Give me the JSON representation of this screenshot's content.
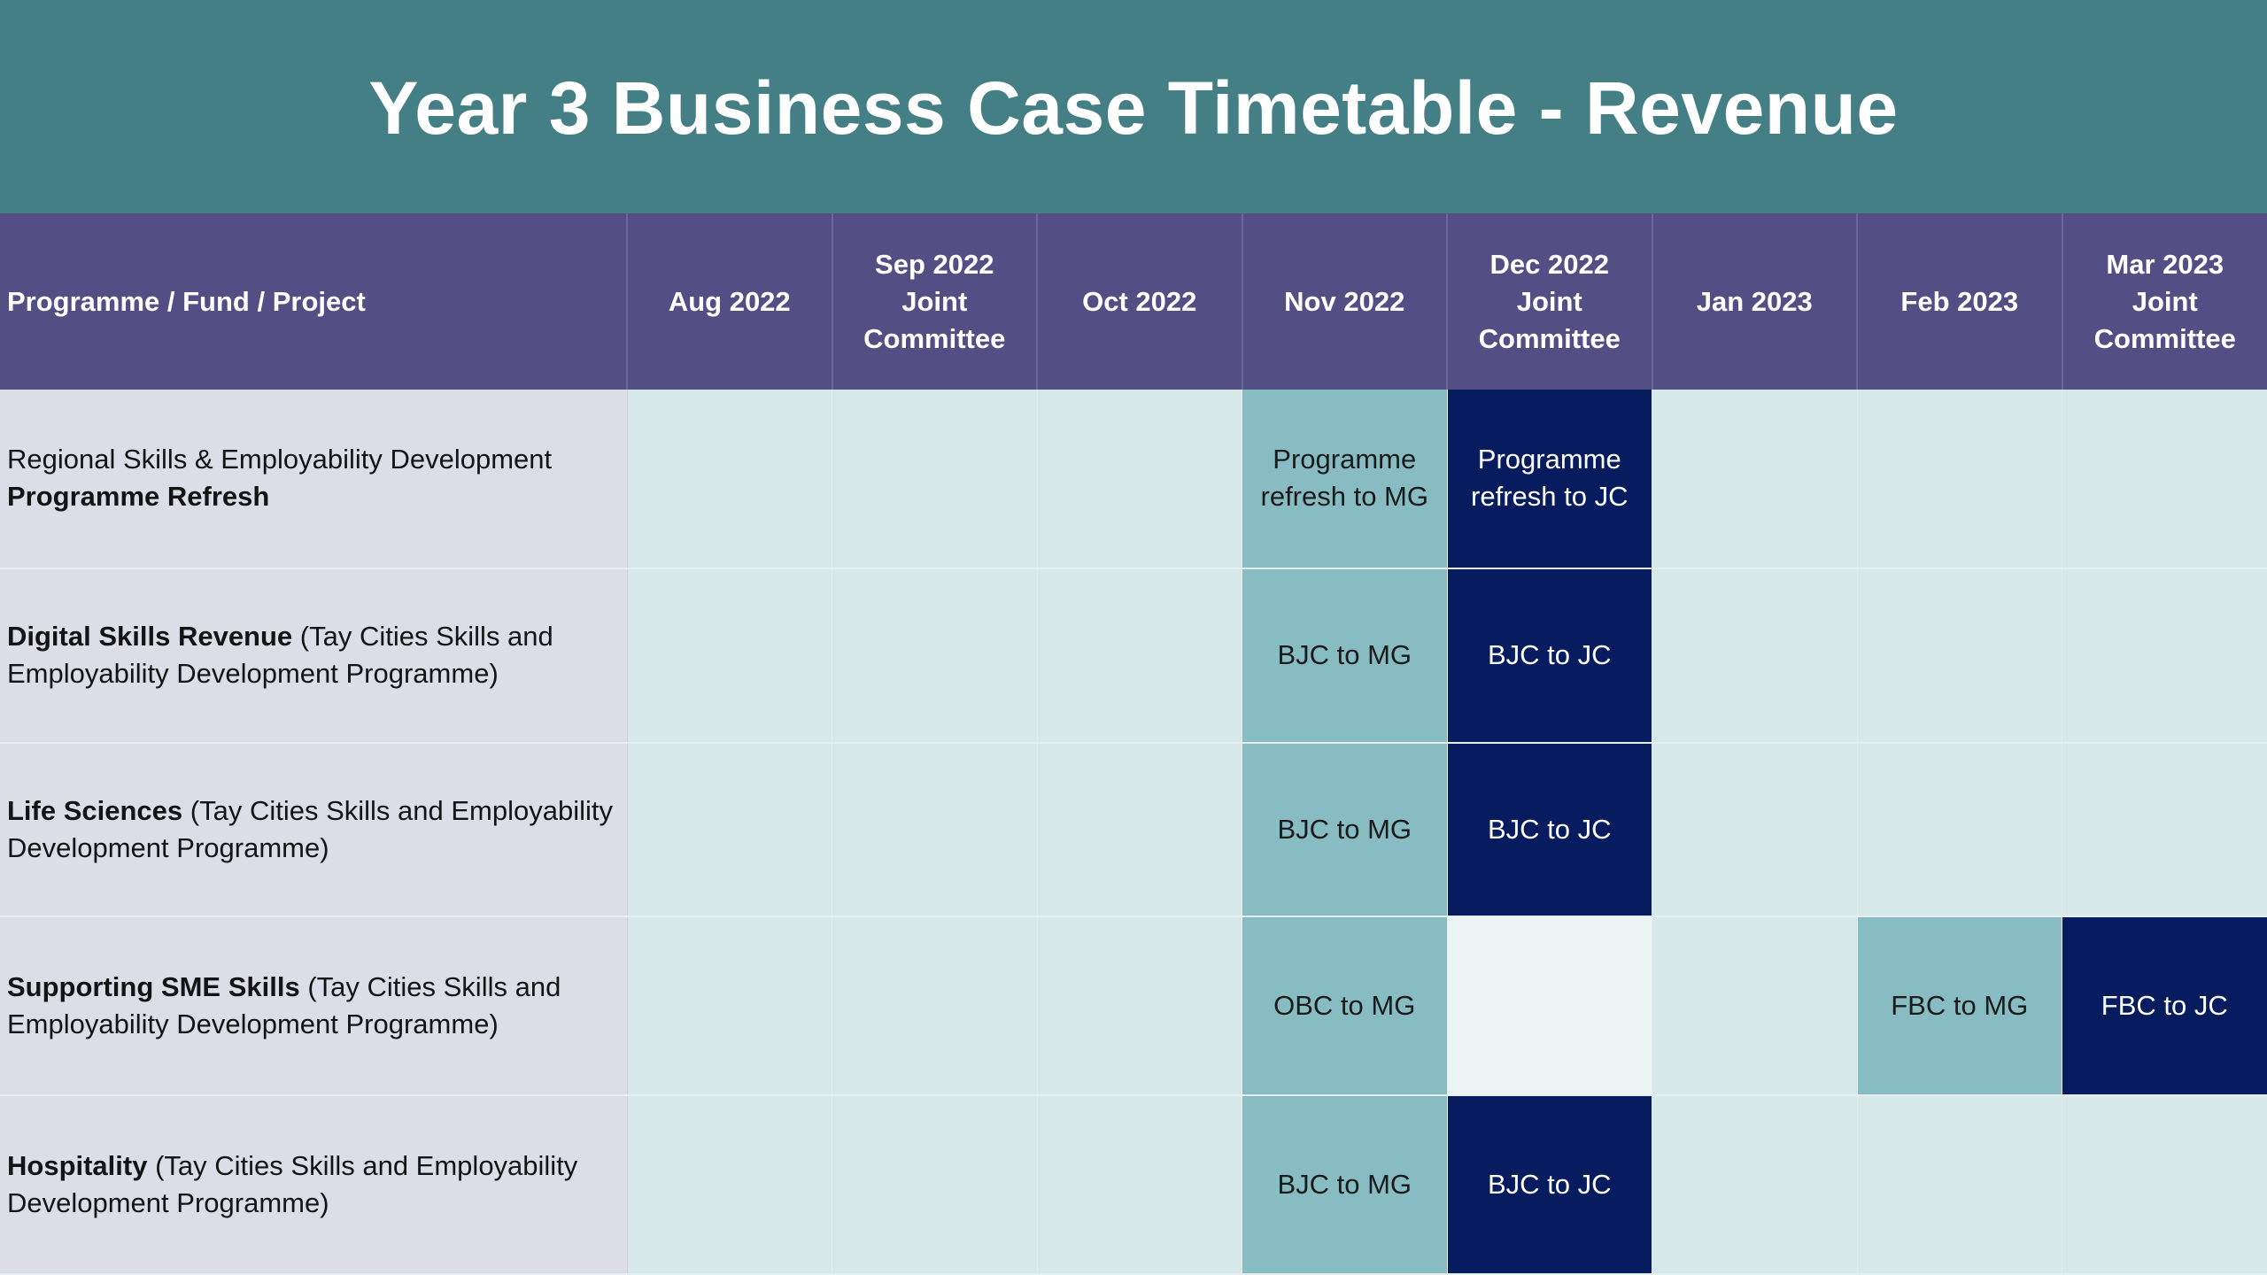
{
  "title": "Year 3 Business Case Timetable - Revenue",
  "table": {
    "columns": [
      "Programme / Fund / Project",
      "Aug 2022",
      "Sep 2022\nJoint\nCommittee",
      "Oct 2022",
      "Nov 2022",
      "Dec 2022\nJoint\nCommittee",
      "Jan 2023",
      "Feb 2023",
      "Mar 2023\nJoint\nCommittee"
    ],
    "rows": [
      {
        "label_plain_prefix": "Regional Skills & Employability Development",
        "label_bold": "Programme Refresh",
        "label_rest": "",
        "nov": "Programme refresh to MG",
        "dec": "Programme refresh to JC",
        "feb": "",
        "mar": ""
      },
      {
        "label_plain_prefix": "",
        "label_bold": "Digital Skills Revenue",
        "label_rest": "(Tay Cities Skills and Employability Development Programme)",
        "nov": "BJC to MG",
        "dec": "BJC to JC",
        "feb": "",
        "mar": ""
      },
      {
        "label_plain_prefix": "",
        "label_bold": "Life Sciences",
        "label_rest": "(Tay Cities Skills and Employability Development Programme)",
        "nov": "BJC to MG",
        "dec": "BJC to JC",
        "feb": "",
        "mar": ""
      },
      {
        "label_plain_prefix": "",
        "label_bold": "Supporting SME Skills",
        "label_rest": "(Tay Cities Skills and Employability Development Programme)",
        "nov": "OBC to MG",
        "dec": "",
        "feb": "FBC to MG",
        "mar": "FBC to JC"
      },
      {
        "label_plain_prefix": "",
        "label_bold": "Hospitality",
        "label_rest": "(Tay Cities Skills and Employability Development Programme)",
        "nov": "BJC to MG",
        "dec": "BJC to JC",
        "feb": "",
        "mar": ""
      }
    ]
  },
  "colors": {
    "title_bar": "#457f86",
    "header_row": "#534f85",
    "grid_background": "#d6e9e8",
    "programme_column": "#dcdde6",
    "to_mg_cell": "#87bcc3",
    "to_jc_cell": "#061c5e"
  }
}
